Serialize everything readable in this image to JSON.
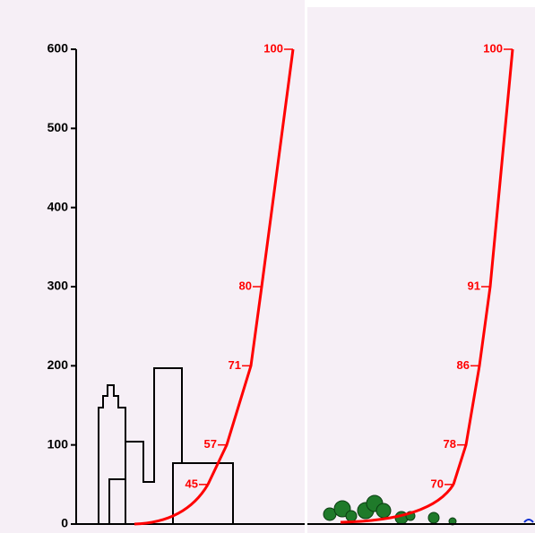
{
  "chart_data": [
    {
      "type": "line",
      "ylim": [
        0,
        600
      ],
      "yticks": [
        0,
        100,
        200,
        300,
        400,
        500,
        600
      ],
      "color": "#ff0000",
      "categories": [
        "45",
        "57",
        "71",
        "80",
        "100"
      ],
      "values": [
        50,
        100,
        200,
        300,
        600
      ]
    },
    {
      "type": "line",
      "ylim": [
        0,
        600
      ],
      "color": "#ff0000",
      "categories": [
        "70",
        "78",
        "86",
        "91",
        "100"
      ],
      "values": [
        50,
        100,
        200,
        300,
        600
      ]
    }
  ]
}
